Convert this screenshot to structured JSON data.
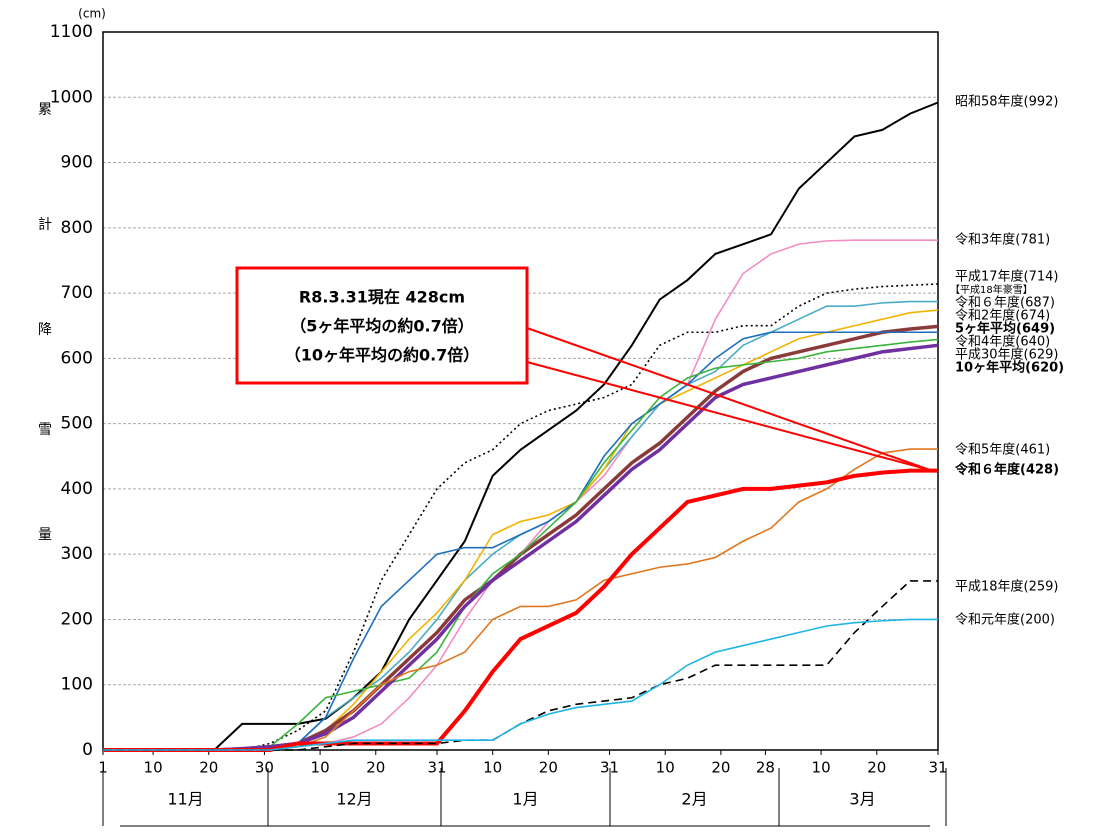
{
  "chart_data": {
    "type": "line",
    "y_unit": "(cm)",
    "y_axis_label": "累計降雪量",
    "x": [
      0,
      20,
      25,
      30,
      35,
      40,
      45,
      50,
      55,
      60,
      65,
      70,
      75,
      80,
      85,
      90,
      95,
      100,
      105,
      110,
      115,
      120,
      125,
      130,
      135,
      140,
      145,
      150
    ],
    "xlim": [
      0,
      150
    ],
    "ylim": [
      0,
      1100
    ],
    "xticks": [
      {
        "value": 0,
        "label": "1"
      },
      {
        "value": 9,
        "label": "10"
      },
      {
        "value": 19,
        "label": "20"
      },
      {
        "value": 29,
        "label": "30"
      },
      {
        "value": 39,
        "label": "10"
      },
      {
        "value": 49,
        "label": "20"
      },
      {
        "value": 60,
        "label": "31"
      },
      {
        "value": 70,
        "label": "10"
      },
      {
        "value": 80,
        "label": "20"
      },
      {
        "value": 91,
        "label": "31"
      },
      {
        "value": 101,
        "label": "10"
      },
      {
        "value": 111,
        "label": "20"
      },
      {
        "value": 119,
        "label": "28"
      },
      {
        "value": 129,
        "label": "10"
      },
      {
        "value": 139,
        "label": "20"
      },
      {
        "value": 150,
        "label": "31"
      }
    ],
    "yticks": [
      0,
      100,
      200,
      300,
      400,
      500,
      600,
      700,
      800,
      900,
      1000,
      1100
    ],
    "grid": true,
    "months": [
      "11月",
      "12月",
      "1月",
      "2月",
      "3月"
    ],
    "annotation": [
      "R8.3.31現在 428cm",
      "（5ヶ年平均の約0.7倍）",
      "（10ヶ年平均の約0.7倍）"
    ],
    "note": "【平成18年豪雪】",
    "series": [
      {
        "name": "昭和58年度(992)",
        "color": "#000000",
        "width": 2,
        "values": [
          0,
          0,
          40,
          40,
          40,
          48,
          80,
          120,
          200,
          260,
          320,
          420,
          460,
          490,
          520,
          560,
          620,
          690,
          720,
          760,
          775,
          790,
          860,
          900,
          940,
          950,
          975,
          992
        ]
      },
      {
        "name": "令和3年度(781)",
        "color": "#f48cc4",
        "width": 1.6,
        "values": [
          0,
          0,
          0,
          0,
          5,
          10,
          20,
          40,
          80,
          130,
          200,
          260,
          300,
          350,
          380,
          420,
          480,
          530,
          560,
          660,
          730,
          760,
          775,
          780,
          781,
          781,
          781,
          781
        ]
      },
      {
        "name": "平成17年度(714)",
        "color": "#000000",
        "width": 1.6,
        "dash": "2,3",
        "values": [
          0,
          0,
          0,
          10,
          30,
          60,
          150,
          260,
          330,
          400,
          440,
          460,
          500,
          520,
          530,
          540,
          560,
          620,
          640,
          640,
          650,
          650,
          680,
          700,
          706,
          710,
          712,
          714
        ]
      },
      {
        "name": "令和６年度(687)",
        "color": "#4bacc6",
        "width": 1.6,
        "values": [
          0,
          0,
          0,
          5,
          10,
          50,
          80,
          110,
          150,
          200,
          260,
          300,
          330,
          350,
          380,
          430,
          480,
          530,
          560,
          580,
          620,
          640,
          660,
          680,
          680,
          685,
          687,
          687
        ]
      },
      {
        "name": "令和2年度(674)",
        "color": "#f0b400",
        "width": 1.6,
        "values": [
          0,
          0,
          0,
          5,
          10,
          30,
          70,
          120,
          170,
          210,
          260,
          330,
          350,
          360,
          380,
          430,
          500,
          530,
          550,
          570,
          590,
          610,
          630,
          640,
          650,
          660,
          670,
          674
        ]
      },
      {
        "name": "5ヶ年平均(649)",
        "color": "#8b3a3a",
        "width": 3.5,
        "values": [
          0,
          0,
          2,
          5,
          10,
          30,
          60,
          100,
          140,
          180,
          230,
          260,
          300,
          330,
          360,
          400,
          440,
          470,
          510,
          550,
          580,
          600,
          610,
          620,
          630,
          640,
          645,
          649
        ]
      },
      {
        "name": "令和4年度(640)",
        "color": "#1f6fc0",
        "width": 1.6,
        "values": [
          0,
          0,
          0,
          5,
          10,
          50,
          140,
          220,
          260,
          300,
          310,
          310,
          330,
          350,
          380,
          450,
          500,
          530,
          560,
          600,
          630,
          640,
          640,
          640,
          640,
          640,
          640,
          640
        ]
      },
      {
        "name": "平成30年度(629)",
        "color": "#3cb43c",
        "width": 1.6,
        "values": [
          0,
          0,
          0,
          5,
          40,
          80,
          90,
          100,
          110,
          150,
          220,
          270,
          300,
          340,
          380,
          440,
          490,
          540,
          570,
          585,
          590,
          595,
          600,
          610,
          615,
          620,
          625,
          629
        ]
      },
      {
        "name": "10ヶ年平均(620)",
        "color": "#7030a0",
        "width": 3.5,
        "values": [
          0,
          0,
          2,
          5,
          10,
          25,
          50,
          90,
          130,
          170,
          220,
          260,
          290,
          320,
          350,
          390,
          430,
          460,
          500,
          540,
          560,
          570,
          580,
          590,
          600,
          610,
          615,
          620
        ]
      },
      {
        "name": "令和5年度(461)",
        "color": "#e07820",
        "width": 1.6,
        "values": [
          0,
          0,
          0,
          0,
          5,
          20,
          60,
          100,
          120,
          130,
          150,
          200,
          220,
          220,
          230,
          260,
          270,
          280,
          285,
          295,
          320,
          340,
          380,
          400,
          430,
          455,
          461,
          461
        ]
      },
      {
        "name": "令和６年度(428)",
        "color": "#ff0000",
        "width": 4,
        "values": [
          0,
          0,
          0,
          0,
          10,
          10,
          10,
          10,
          10,
          10,
          60,
          120,
          170,
          190,
          210,
          250,
          300,
          340,
          380,
          390,
          400,
          400,
          405,
          410,
          420,
          425,
          428,
          428
        ]
      },
      {
        "name": "平成18年度(259)",
        "color": "#000000",
        "width": 1.6,
        "dash": "8,5",
        "values": [
          0,
          0,
          0,
          0,
          0,
          5,
          10,
          10,
          10,
          10,
          15,
          15,
          40,
          60,
          70,
          75,
          80,
          100,
          110,
          130,
          130,
          130,
          130,
          130,
          180,
          220,
          259,
          259
        ]
      },
      {
        "name": "令和元年度(200)",
        "color": "#1eb4e6",
        "width": 1.6,
        "values": [
          0,
          0,
          0,
          0,
          5,
          10,
          15,
          15,
          15,
          15,
          15,
          15,
          40,
          55,
          65,
          70,
          75,
          100,
          130,
          150,
          160,
          170,
          180,
          190,
          195,
          198,
          200,
          200
        ]
      }
    ]
  }
}
